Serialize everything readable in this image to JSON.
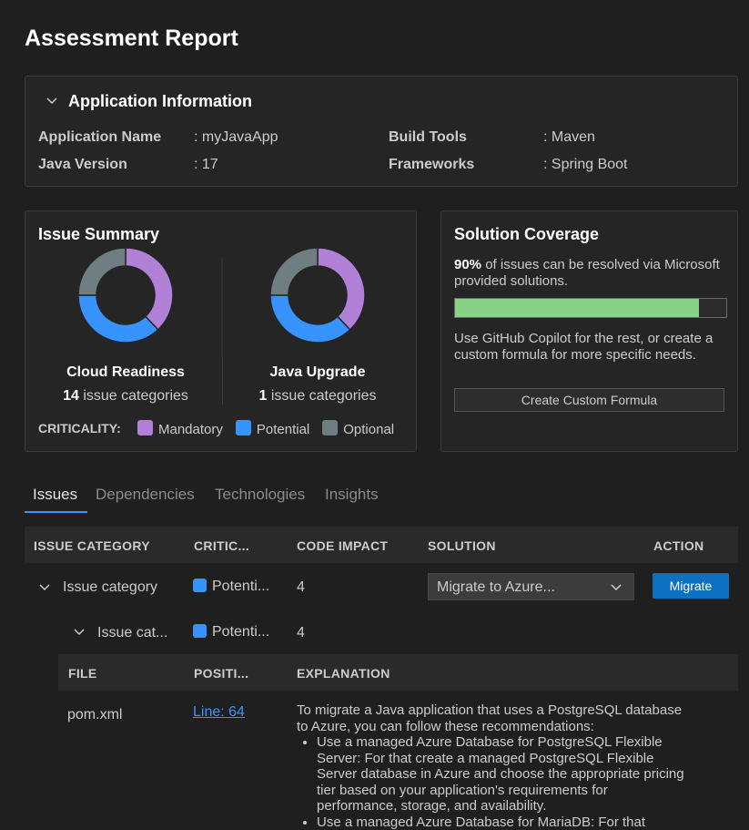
{
  "header": {
    "title": "Assessment Report"
  },
  "app_info": {
    "title": "Application Information",
    "fields": [
      {
        "label": "Application Name",
        "value": ": myJavaApp"
      },
      {
        "label": "Build Tools",
        "value": ": Maven"
      },
      {
        "label": "Java Version",
        "value": ": 17"
      },
      {
        "label": "Frameworks",
        "value": ": Spring Boot"
      }
    ]
  },
  "issue_summary": {
    "title": "Issue Summary",
    "charts": [
      {
        "name": "Cloud Readiness",
        "count": 14,
        "count_label": "issue categories",
        "segments": [
          38,
          37,
          25
        ]
      },
      {
        "name": "Java Upgrade",
        "count": 1,
        "count_label": "issue categories",
        "segments": [
          38,
          37,
          25
        ]
      }
    ],
    "legend_label": "CRITICALITY:",
    "legend": [
      {
        "name": "Mandatory",
        "color": "#b180d7"
      },
      {
        "name": "Potential",
        "color": "#3794ff"
      },
      {
        "name": "Optional",
        "color": "#6f7f81"
      }
    ]
  },
  "solution_coverage": {
    "title": "Solution Coverage",
    "coverage": 90,
    "coverage_label": "90%",
    "coverage_text": "of issues can be resolved via Microsoft provided solutions.",
    "bar_color": "#89d185",
    "note": "Use GitHub Copilot for the rest, or create a custom formula for more specific needs.",
    "button": "Create Custom Formula"
  },
  "tabs": {
    "items": [
      "Issues",
      "Dependencies",
      "Technologies",
      "Insights"
    ],
    "active": 0
  },
  "table": {
    "headers": [
      "ISSUE CATEGORY",
      "CRITIC...",
      "CODE IMPACT",
      "SOLUTION",
      "ACTION"
    ],
    "rows": [
      {
        "category": "Issue category",
        "criticality": "Potenti...",
        "impact": 4,
        "solution": "Migrate to Azure...",
        "action": "Migrate"
      },
      {
        "category": "Issue cat...",
        "criticality": "Potenti...",
        "impact": 4
      }
    ],
    "files": {
      "headers": [
        "FILE",
        "POSITI...",
        "EXPLANATION"
      ],
      "rows": [
        {
          "file": "pom.xml",
          "position": "Line: 64",
          "explanation": "To migrate a Java application that uses a PostgreSQL database to Azure, you can follow these recommendations:",
          "bullets": [
            "Use a managed Azure Database for PostgreSQL Flexible Server: For that create a managed PostgreSQL Flexible Server database in Azure and choose the appropriate pricing tier based on your application's requirements for performance, storage, and availability.",
            "Use a managed Azure Database for MariaDB: For that"
          ]
        }
      ]
    }
  }
}
